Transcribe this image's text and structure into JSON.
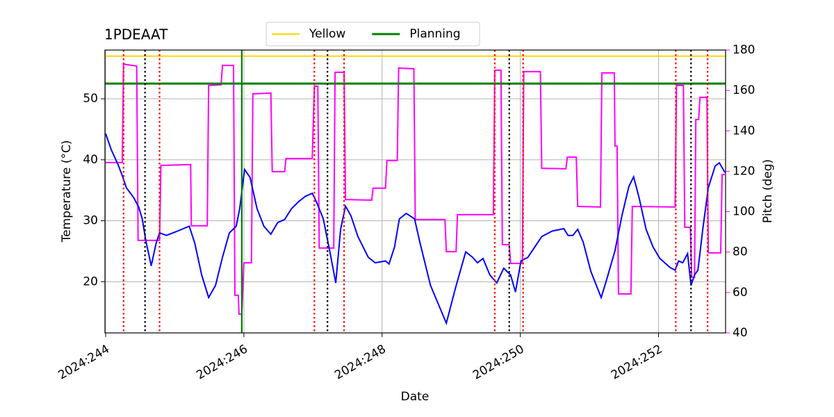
{
  "chart_data": {
    "type": "line",
    "title": "1PDEAAT",
    "xlabel": "Date",
    "ylabel": "Temperature (°C)",
    "y2label": "Pitch (deg)",
    "xlim": [
      243.99,
      252.97
    ],
    "xticks": [
      {
        "value": 244,
        "label": "2024:244"
      },
      {
        "value": 246,
        "label": "2024:246"
      },
      {
        "value": 248,
        "label": "2024:248"
      },
      {
        "value": 250,
        "label": "2024:250"
      },
      {
        "value": 252,
        "label": "2024:252"
      }
    ],
    "ylim": [
      11.6,
      58.0
    ],
    "yticks": [
      20,
      30,
      40,
      50
    ],
    "y2lim": [
      40,
      180
    ],
    "y2ticks": [
      40,
      60,
      80,
      100,
      120,
      140,
      160,
      180
    ],
    "y2color": "magenta",
    "grid": true,
    "legend": "upper center",
    "hlines": [
      {
        "name": "Yellow",
        "value": 57.0,
        "color": "gold",
        "width": 2
      },
      {
        "name": "Planning",
        "value": 52.5,
        "color": "green",
        "width": 3
      }
    ],
    "vlines": [
      {
        "x": 245.97,
        "color": "green",
        "style": "solid"
      },
      {
        "x": 244.26,
        "color": "red",
        "style": "dotted"
      },
      {
        "x": 244.78,
        "color": "red",
        "style": "dotted"
      },
      {
        "x": 247.02,
        "color": "red",
        "style": "dotted"
      },
      {
        "x": 247.45,
        "color": "red",
        "style": "dotted"
      },
      {
        "x": 249.63,
        "color": "red",
        "style": "dotted"
      },
      {
        "x": 250.04,
        "color": "red",
        "style": "dotted"
      },
      {
        "x": 252.25,
        "color": "red",
        "style": "dotted"
      },
      {
        "x": 252.71,
        "color": "red",
        "style": "dotted"
      },
      {
        "x": 244.57,
        "color": "black",
        "style": "dotted"
      },
      {
        "x": 247.21,
        "color": "black",
        "style": "dotted"
      },
      {
        "x": 249.84,
        "color": "black",
        "style": "dotted"
      },
      {
        "x": 252.47,
        "color": "black",
        "style": "dotted"
      }
    ],
    "series": [
      {
        "color": "magenta",
        "axis": "y2",
        "x": [
          244.0,
          244.24,
          244.26,
          244.3,
          244.45,
          244.47,
          244.78,
          244.8,
          245.23,
          245.24,
          245.47,
          245.49,
          245.67,
          245.69,
          245.85,
          245.87,
          245.92,
          245.93,
          245.97,
          246.0,
          246.11,
          246.13,
          246.39,
          246.41,
          246.59,
          246.61,
          246.99,
          247.02,
          247.07,
          247.09,
          247.3,
          247.32,
          247.45,
          247.47,
          247.85,
          247.87,
          248.05,
          248.07,
          248.22,
          248.24,
          248.46,
          248.48,
          248.91,
          248.93,
          249.07,
          249.09,
          249.61,
          249.63,
          249.72,
          249.74,
          249.84,
          249.86,
          250.03,
          250.05,
          250.29,
          250.31,
          250.66,
          250.68,
          250.81,
          250.83,
          251.16,
          251.18,
          251.36,
          251.37,
          251.4,
          251.42,
          251.6,
          251.62,
          252.24,
          252.26,
          252.36,
          252.38,
          252.46,
          252.48,
          252.52,
          252.54,
          252.58,
          252.6,
          252.7,
          252.72,
          252.9,
          252.92,
          252.96
        ],
        "values": [
          124.3,
          124.3,
          173.1,
          172.8,
          172.1,
          85.8,
          85.8,
          122.9,
          123.3,
          93.0,
          93.0,
          162.5,
          162.8,
          172.4,
          172.4,
          58.6,
          58.6,
          49.3,
          49.3,
          74.7,
          74.7,
          158.3,
          158.7,
          119.8,
          119.8,
          126.3,
          126.3,
          162.1,
          162.1,
          82.0,
          82.0,
          169.0,
          169.0,
          106.0,
          105.7,
          111.6,
          111.6,
          125.3,
          125.3,
          171.1,
          170.7,
          96.1,
          96.1,
          80.2,
          80.2,
          98.5,
          98.5,
          170.0,
          170.0,
          83.7,
          83.7,
          74.4,
          74.4,
          169.3,
          169.3,
          121.5,
          121.2,
          127.0,
          127.0,
          102.6,
          102.3,
          168.7,
          168.7,
          132.5,
          132.5,
          59.3,
          59.3,
          102.6,
          102.3,
          162.5,
          162.5,
          92.3,
          92.3,
          67.5,
          67.5,
          145.6,
          145.6,
          156.6,
          156.6,
          79.6,
          79.6,
          118.4,
          118.4
        ]
      },
      {
        "color": "blue",
        "axis": "y",
        "x": [
          244.0,
          244.08,
          244.18,
          244.25,
          244.3,
          244.36,
          244.41,
          244.48,
          244.53,
          244.58,
          244.66,
          244.73,
          244.78,
          244.88,
          245.04,
          245.21,
          245.29,
          245.39,
          245.49,
          245.59,
          245.69,
          245.79,
          245.89,
          245.94,
          246.01,
          246.09,
          246.19,
          246.29,
          246.39,
          246.49,
          246.59,
          246.69,
          246.79,
          246.89,
          246.99,
          247.05,
          247.15,
          247.25,
          247.33,
          247.4,
          247.47,
          247.55,
          247.65,
          247.8,
          247.9,
          248.05,
          248.1,
          248.18,
          248.25,
          248.35,
          248.47,
          248.55,
          248.7,
          248.93,
          249.06,
          249.21,
          249.31,
          249.38,
          249.46,
          249.56,
          249.66,
          249.76,
          249.86,
          249.93,
          250.01,
          250.11,
          250.21,
          250.31,
          250.46,
          250.63,
          250.69,
          250.76,
          250.83,
          250.91,
          251.02,
          251.17,
          251.24,
          251.37,
          251.47,
          251.57,
          251.64,
          251.72,
          251.82,
          251.92,
          252.02,
          252.17,
          252.24,
          252.29,
          252.35,
          252.42,
          252.47,
          252.52,
          252.57,
          252.64,
          252.72,
          252.82,
          252.88,
          252.96
        ],
        "values": [
          44.3,
          41.7,
          39.2,
          37.1,
          35.4,
          34.5,
          33.7,
          32.2,
          30.3,
          26.8,
          22.6,
          26.3,
          28.0,
          27.6,
          28.3,
          29.1,
          26.3,
          21.1,
          17.4,
          19.4,
          24.0,
          28.0,
          29.1,
          32.0,
          38.4,
          37.1,
          32.0,
          29.1,
          27.8,
          29.7,
          30.2,
          32.0,
          33.1,
          34.0,
          34.5,
          33.1,
          30.3,
          24.6,
          19.8,
          28.6,
          32.4,
          30.8,
          27.4,
          24.0,
          23.1,
          23.4,
          22.9,
          25.7,
          30.3,
          31.2,
          30.3,
          26.3,
          19.4,
          13.2,
          18.9,
          24.9,
          24.0,
          23.1,
          23.8,
          21.1,
          19.8,
          22.2,
          21.1,
          18.3,
          23.4,
          24.0,
          25.7,
          27.4,
          28.3,
          28.7,
          27.6,
          27.6,
          28.6,
          26.5,
          21.7,
          17.4,
          20.0,
          25.1,
          30.8,
          35.6,
          37.2,
          33.7,
          28.6,
          25.7,
          23.8,
          22.3,
          21.9,
          23.4,
          23.1,
          24.6,
          19.4,
          21.1,
          21.9,
          28.6,
          35.4,
          39.0,
          39.5,
          37.9
        ]
      }
    ]
  }
}
